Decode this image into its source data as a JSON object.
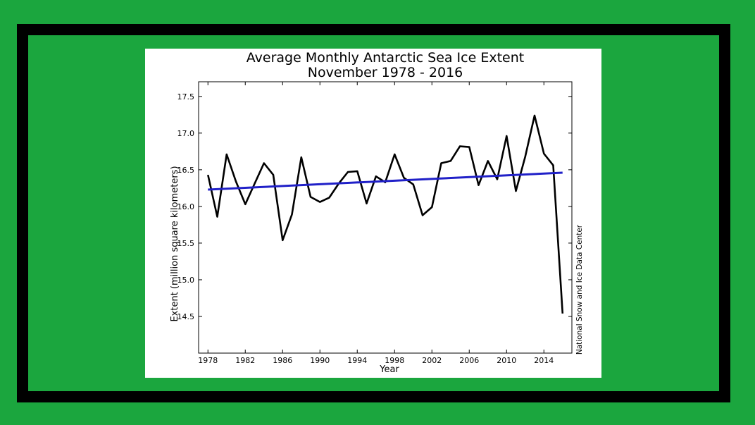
{
  "colors": {
    "background": "#1ba63e",
    "frame": "#000000",
    "card": "#ffffff",
    "data_line": "#000000",
    "trend_line": "#2020c8"
  },
  "chart_data": {
    "type": "line",
    "title": "Average Monthly Antarctic Sea Ice Extent",
    "subtitle": "November 1978 - 2016",
    "xlabel": "Year",
    "ylabel": "Extent (million square kilometers)",
    "credit": "National Snow and Ice Data Center",
    "xlim": [
      1977,
      2017
    ],
    "ylim": [
      14.0,
      17.7
    ],
    "xticks": [
      1978,
      1982,
      1986,
      1990,
      1994,
      1998,
      2002,
      2006,
      2010,
      2014
    ],
    "yticks": [
      14.5,
      15.0,
      15.5,
      16.0,
      16.5,
      17.0,
      17.5
    ],
    "grid": false,
    "x": [
      1978,
      1979,
      1980,
      1981,
      1982,
      1983,
      1984,
      1985,
      1986,
      1987,
      1988,
      1989,
      1990,
      1991,
      1992,
      1993,
      1994,
      1995,
      1996,
      1997,
      1998,
      1999,
      2000,
      2001,
      2002,
      2003,
      2004,
      2005,
      2006,
      2007,
      2008,
      2009,
      2010,
      2011,
      2012,
      2013,
      2014,
      2015,
      2016
    ],
    "series": [
      {
        "values": [
          16.43,
          15.86,
          16.71,
          16.34,
          16.03,
          16.31,
          16.59,
          16.43,
          15.54,
          15.89,
          16.67,
          16.13,
          16.06,
          16.12,
          16.31,
          16.47,
          16.48,
          16.04,
          16.41,
          16.33,
          16.71,
          16.39,
          16.3,
          15.88,
          15.99,
          16.59,
          16.62,
          16.82,
          16.81,
          16.29,
          16.62,
          16.37,
          16.96,
          16.21,
          16.68,
          17.24,
          16.72,
          16.56,
          14.54
        ]
      },
      {
        "values": [
          16.23,
          16.46
        ],
        "x": [
          1978,
          2016
        ]
      }
    ]
  }
}
